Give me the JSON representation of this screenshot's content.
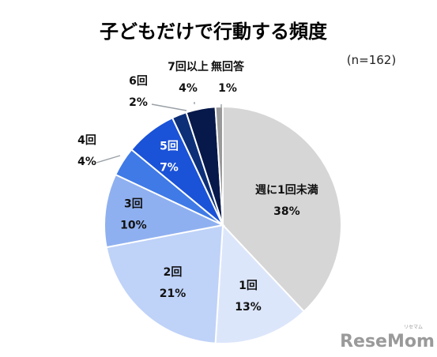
{
  "chart_data": {
    "type": "pie",
    "title": "子どもだけで行動する頻度",
    "note": "(n=162)",
    "slices": [
      {
        "label": "週に1回未満",
        "value": 38,
        "percent_label": "38%",
        "color": "#d6d6d6"
      },
      {
        "label": "1回",
        "value": 13,
        "percent_label": "13%",
        "color": "#dce6fb"
      },
      {
        "label": "2回",
        "value": 21,
        "percent_label": "21%",
        "color": "#bfd2f8"
      },
      {
        "label": "3回",
        "value": 10,
        "percent_label": "10%",
        "color": "#8fb0f0"
      },
      {
        "label": "4回",
        "value": 4,
        "percent_label": "4%",
        "color": "#3f7ae6"
      },
      {
        "label": "5回",
        "value": 7,
        "percent_label": "7%",
        "color": "#1a52d8"
      },
      {
        "label": "6回",
        "value": 2,
        "percent_label": "2%",
        "color": "#0d2f78"
      },
      {
        "label": "7回以上",
        "value": 4,
        "percent_label": "4%",
        "color": "#07184a"
      },
      {
        "label": "無回答",
        "value": 1,
        "percent_label": "1%",
        "color": "#9a9a9a"
      }
    ]
  },
  "watermark": {
    "text": "ReseMom",
    "small": "リセマム"
  }
}
